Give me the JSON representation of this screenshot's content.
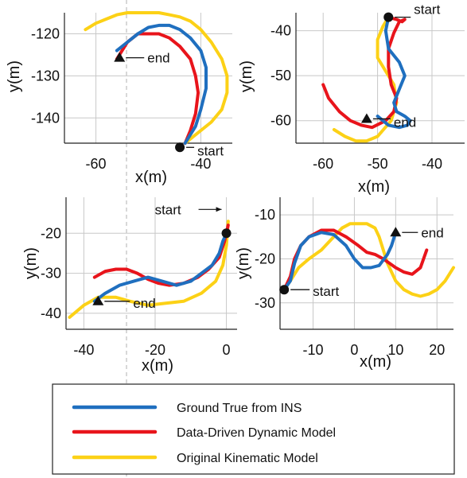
{
  "colors": {
    "ins": "#1f6fbf",
    "dyn": "#e8141b",
    "kin": "#fcd116",
    "grid": "#c8c8c8",
    "axis": "#222222"
  },
  "legend": {
    "entries": [
      "Ground True from INS",
      "Data-Driven Dynamic Model",
      "Original Kinematic Model"
    ]
  },
  "chart_data": [
    {
      "type": "line",
      "xlabel": "x(m)",
      "ylabel": "y(m)",
      "xlim": [
        -66,
        -34
      ],
      "ylim": [
        -146,
        -115
      ],
      "xticks": [
        -60,
        -40
      ],
      "yticks": [
        -120,
        -130,
        -140
      ],
      "grid": true,
      "annotations": [
        {
          "text": "end",
          "x": -55.5,
          "y": -125.7
        },
        {
          "text": "start",
          "x": -44,
          "y": -147
        }
      ],
      "series": [
        {
          "name": "Ground True from INS",
          "x": [
            -56,
            -54,
            -52,
            -50,
            -48,
            -46,
            -44,
            -42,
            -40,
            -39,
            -39,
            -40,
            -41,
            -43
          ],
          "y": [
            -124,
            -122,
            -120,
            -118.5,
            -118,
            -118,
            -119,
            -121,
            -124,
            -128,
            -133,
            -138,
            -142,
            -146
          ]
        },
        {
          "name": "Data-Driven Dynamic Model",
          "x": [
            -56,
            -55,
            -54,
            -52,
            -50,
            -48,
            -46,
            -44,
            -42,
            -41,
            -40.5,
            -41,
            -42,
            -43
          ],
          "y": [
            -126,
            -124,
            -122,
            -120,
            -120,
            -120,
            -121,
            -123,
            -126,
            -130,
            -134,
            -139,
            -143,
            -146
          ]
        },
        {
          "name": "Original Kinematic Model",
          "x": [
            -62,
            -60,
            -58,
            -56,
            -54,
            -52,
            -50,
            -48,
            -46,
            -44,
            -42,
            -40,
            -38,
            -36,
            -35,
            -35,
            -36,
            -38,
            -40,
            -42,
            -43
          ],
          "y": [
            -119,
            -117.5,
            -116.5,
            -115.5,
            -115,
            -115,
            -115,
            -115,
            -115.5,
            -116,
            -117,
            -119,
            -122,
            -126,
            -130,
            -134,
            -138,
            -141,
            -143,
            -145,
            -146
          ]
        }
      ]
    },
    {
      "type": "line",
      "xlabel": "x(m)",
      "ylabel": "y(m)",
      "xlim": [
        -65,
        -34
      ],
      "ylim": [
        -65,
        -36
      ],
      "xticks": [
        -60,
        -50,
        -40
      ],
      "yticks": [
        -40,
        -50,
        -60
      ],
      "grid": true,
      "annotations": [
        {
          "text": "start",
          "x": -48,
          "y": -37
        },
        {
          "text": "end",
          "x": -52,
          "y": -59.6
        }
      ],
      "series": [
        {
          "name": "Ground True from INS",
          "x": [
            -48,
            -48.5,
            -48,
            -46,
            -45,
            -46,
            -47,
            -46.5,
            -45,
            -44,
            -44.5,
            -46,
            -48,
            -49,
            -50
          ],
          "y": [
            -37,
            -40,
            -44,
            -47,
            -50,
            -53,
            -56,
            -58,
            -59,
            -60,
            -61,
            -61.5,
            -61,
            -60,
            -59
          ]
        },
        {
          "name": "Data-Driven Dynamic Model",
          "x": [
            -60,
            -59,
            -57,
            -55,
            -53,
            -51,
            -48.5,
            -47,
            -46.5,
            -47.5,
            -48,
            -48,
            -47,
            -46,
            -45,
            -45.5,
            -46.5,
            -48
          ],
          "y": [
            -52,
            -55,
            -58,
            -60,
            -61,
            -61.5,
            -60,
            -58,
            -55,
            -52,
            -48,
            -44,
            -40.5,
            -38,
            -37.5,
            -38,
            -37.5,
            -37
          ]
        },
        {
          "name": "Original Kinematic Model",
          "x": [
            -58,
            -56,
            -54,
            -52,
            -50,
            -47.5,
            -46.5,
            -47,
            -48.5,
            -50,
            -50,
            -49,
            -48
          ],
          "y": [
            -62,
            -63.5,
            -64.5,
            -64.5,
            -63.5,
            -60,
            -56,
            -52,
            -49,
            -46,
            -42,
            -39,
            -37
          ]
        }
      ]
    },
    {
      "type": "line",
      "xlabel": "x(m)",
      "ylabel": "y(m)",
      "xlim": [
        -45,
        3
      ],
      "ylim": [
        -44,
        -11
      ],
      "xticks": [
        -40,
        -20,
        0
      ],
      "yticks": [
        -20,
        -30,
        -40
      ],
      "grid": true,
      "annotations": [
        {
          "text": "start",
          "x": 0,
          "y": -20
        },
        {
          "text": "end",
          "x": -36,
          "y": -37
        }
      ],
      "series": [
        {
          "name": "Ground True from INS",
          "x": [
            -37,
            -34,
            -30,
            -26,
            -22,
            -18,
            -14,
            -10,
            -7,
            -4,
            -2,
            -1,
            0
          ],
          "y": [
            -37,
            -35,
            -33,
            -32,
            -31,
            -32,
            -33,
            -32,
            -30,
            -28,
            -25,
            -22,
            -20
          ]
        },
        {
          "name": "Data-Driven Dynamic Model",
          "x": [
            -37,
            -34,
            -31,
            -28,
            -25,
            -22,
            -19,
            -16,
            -12,
            -8,
            -5,
            -2,
            -0.5,
            0.5
          ],
          "y": [
            -31,
            -29.5,
            -29,
            -29,
            -30,
            -31.5,
            -32.5,
            -33,
            -32.5,
            -31,
            -29,
            -26,
            -22,
            -18
          ]
        },
        {
          "name": "Original Kinematic Model",
          "x": [
            -44,
            -40,
            -36,
            -31,
            -27,
            -22,
            -17,
            -12,
            -7,
            -3,
            -1,
            0,
            0.5
          ],
          "y": [
            -41,
            -38,
            -36,
            -36,
            -37,
            -38,
            -37.5,
            -37,
            -35,
            -32,
            -28,
            -23,
            -17
          ]
        }
      ]
    },
    {
      "type": "line",
      "xlabel": "x(m)",
      "ylabel": "y(m)",
      "xlim": [
        -18,
        24
      ],
      "ylim": [
        -36,
        -6
      ],
      "xticks": [
        -10,
        0,
        10,
        20
      ],
      "yticks": [
        -10,
        -20,
        -30
      ],
      "grid": true,
      "annotations": [
        {
          "text": "end",
          "x": 10,
          "y": -14
        },
        {
          "text": "start",
          "x": -17,
          "y": -27
        }
      ],
      "series": [
        {
          "name": "Ground True from INS",
          "x": [
            -17,
            -15.5,
            -14.5,
            -13,
            -11,
            -8,
            -5,
            -2,
            0,
            2,
            4,
            6,
            8,
            9,
            10
          ],
          "y": [
            -27,
            -25,
            -21,
            -17,
            -15,
            -14,
            -14.5,
            -17,
            -20,
            -22,
            -22,
            -21.5,
            -19,
            -17,
            -14
          ]
        },
        {
          "name": "Data-Driven Dynamic Model",
          "x": [
            -17,
            -15.5,
            -14.5,
            -13,
            -11,
            -8,
            -5,
            -2,
            1,
            3,
            5,
            7,
            10,
            12,
            14,
            16,
            17.5
          ],
          "y": [
            -27,
            -24,
            -20,
            -17,
            -15,
            -13.5,
            -13.5,
            -15,
            -17,
            -18.5,
            -19,
            -20,
            -22,
            -23,
            -23.5,
            -22,
            -18
          ]
        },
        {
          "name": "Original Kinematic Model",
          "x": [
            -17,
            -15.5,
            -13.5,
            -11,
            -8,
            -5,
            -3,
            -1,
            1,
            3,
            5,
            6,
            7,
            8,
            10,
            12,
            14,
            16,
            18,
            20,
            22,
            24
          ],
          "y": [
            -27,
            -25,
            -22,
            -20,
            -18,
            -15,
            -13,
            -12,
            -12,
            -12,
            -13,
            -15,
            -18,
            -21,
            -25,
            -27,
            -28,
            -28.5,
            -28,
            -27,
            -25,
            -22
          ]
        }
      ]
    }
  ]
}
